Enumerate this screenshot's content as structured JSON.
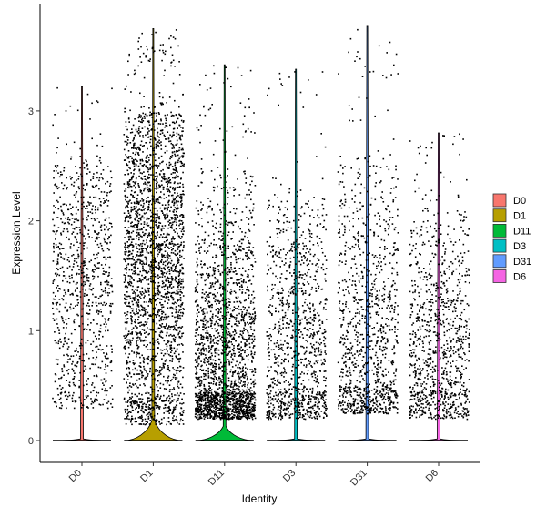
{
  "chart_data": {
    "type": "violin",
    "xlabel": "Identity",
    "ylabel": "Expression Level",
    "categories": [
      "D0",
      "D1",
      "D11",
      "D3",
      "D31",
      "D6"
    ],
    "ylim": [
      -0.2,
      3.85
    ],
    "yticks": [
      0,
      1,
      2,
      3
    ],
    "ytick_labels": [
      "0",
      "1",
      "2",
      "3"
    ],
    "legend_position": "right",
    "grid": false,
    "series": [
      {
        "name": "D0",
        "color": "#F8766D",
        "max": 3.22,
        "bulk_low": 0.3,
        "bulk_high": 2.6,
        "bulk_center": 1.5,
        "zero_bulge": 0.015,
        "dots": 900
      },
      {
        "name": "D1",
        "color": "#B79F00",
        "max": 3.75,
        "bulk_low": 0.15,
        "bulk_high": 3.0,
        "bulk_center": 1.75,
        "zero_bulge": 0.18,
        "dots": 2600
      },
      {
        "name": "D11",
        "color": "#00BA38",
        "max": 3.42,
        "bulk_low": 0.2,
        "bulk_high": 2.5,
        "bulk_center": 0.55,
        "zero_bulge": 0.13,
        "dots": 2200
      },
      {
        "name": "D3",
        "color": "#00BFC4",
        "max": 3.38,
        "bulk_low": 0.2,
        "bulk_high": 2.3,
        "bulk_center": 0.9,
        "zero_bulge": 0.015,
        "dots": 1100
      },
      {
        "name": "D31",
        "color": "#619CFF",
        "max": 3.77,
        "bulk_low": 0.25,
        "bulk_high": 2.6,
        "bulk_center": 0.9,
        "zero_bulge": 0.015,
        "dots": 1100
      },
      {
        "name": "D6",
        "color": "#F564E3",
        "max": 2.8,
        "bulk_low": 0.2,
        "bulk_high": 2.1,
        "bulk_center": 0.8,
        "zero_bulge": 0.015,
        "dots": 1000
      }
    ]
  }
}
